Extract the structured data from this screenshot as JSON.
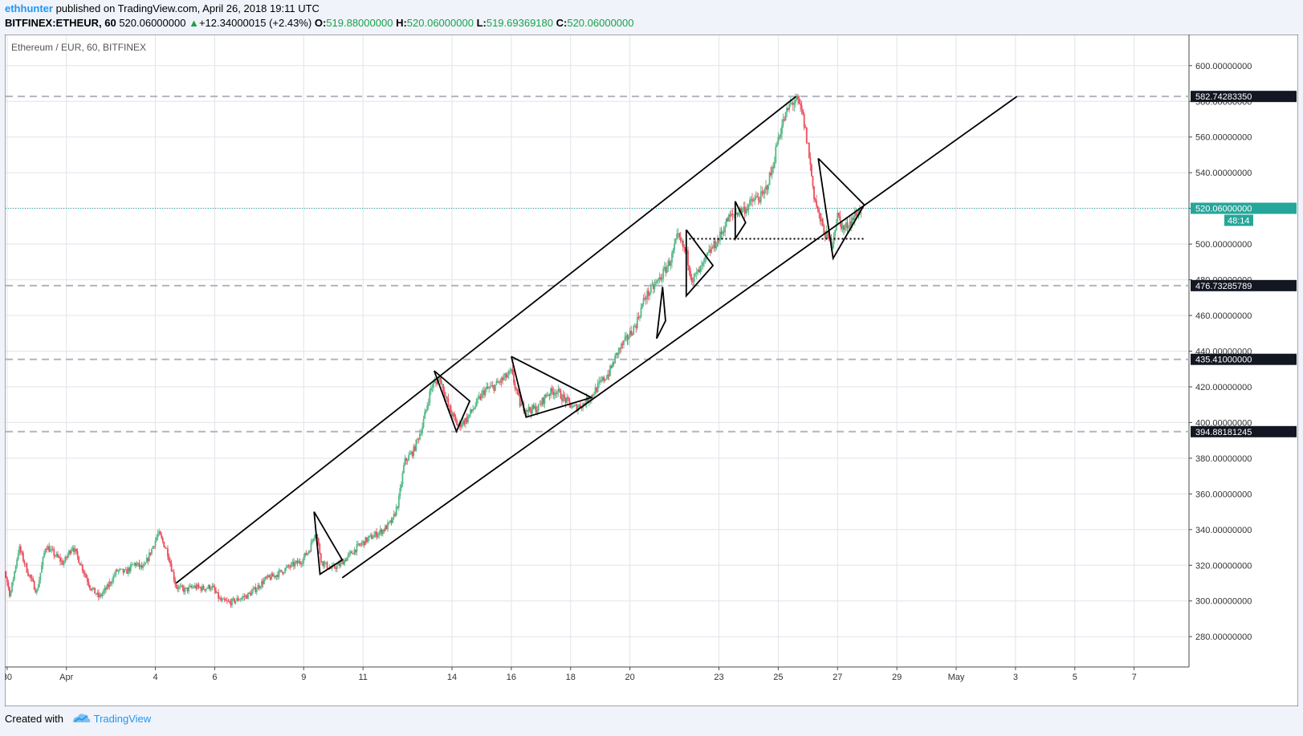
{
  "header": {
    "author": "ethhunter",
    "published_text": "published on TradingView.com, April 26, 2018 19:11 UTC",
    "symbol_interval": "BITFINEX:ETHEUR, 60",
    "last_price": "520.06000000",
    "change_arrow": "▲",
    "change": "+12.34000015 (+2.43%)",
    "o_label": "O:",
    "o_value": "519.88000000",
    "h_label": "H:",
    "h_value": "520.06000000",
    "l_label": "L:",
    "l_value": "519.69369180",
    "c_label": "C:",
    "c_value": "520.06000000"
  },
  "footer": {
    "created_with": "Created with",
    "brand": "TradingView"
  },
  "colors": {
    "up": "#53b987",
    "down": "#eb4d5c",
    "drawing": "#000000",
    "last_price": "#26a69a",
    "grid": "#e1e3ea",
    "level_line": "#b2b5be"
  },
  "chart_data": {
    "type": "candlestick",
    "title": "Ethereum / EUR, 60, BITFINEX",
    "price_axis": {
      "ticks": [
        "280.00000000",
        "300.00000000",
        "320.00000000",
        "340.00000000",
        "360.00000000",
        "380.00000000",
        "400.00000000",
        "420.00000000",
        "440.00000000",
        "460.00000000",
        "480.00000000",
        "500.00000000",
        "520.00000000",
        "540.00000000",
        "560.00000000",
        "580.00000000",
        "600.00000000"
      ],
      "range": [
        263,
        617
      ]
    },
    "time_axis": {
      "labels": [
        {
          "label": "30",
          "day": 30
        },
        {
          "label": "Apr",
          "day": 32
        },
        {
          "label": "4",
          "day": 35
        },
        {
          "label": "6",
          "day": 37
        },
        {
          "label": "9",
          "day": 40
        },
        {
          "label": "11",
          "day": 42
        },
        {
          "label": "14",
          "day": 45
        },
        {
          "label": "16",
          "day": 47
        },
        {
          "label": "18",
          "day": 49
        },
        {
          "label": "20",
          "day": 51
        },
        {
          "label": "23",
          "day": 54
        },
        {
          "label": "25",
          "day": 56
        },
        {
          "label": "27",
          "day": 58
        },
        {
          "label": "29",
          "day": 60
        },
        {
          "label": "May",
          "day": 62
        },
        {
          "label": "3",
          "day": 64
        },
        {
          "label": "5",
          "day": 66
        },
        {
          "label": "7",
          "day": 68
        }
      ],
      "day_range": [
        29.95,
        69.85
      ],
      "note_units": "days counted from March 1, 2018"
    },
    "last_price": {
      "value": 520.06,
      "label": "520.06000000",
      "countdown": "48:14"
    },
    "horizontal_levels": [
      {
        "value": 582.7428335,
        "label": "582.74283350"
      },
      {
        "value": 476.73285789,
        "label": "476.73285789"
      },
      {
        "value": 435.41,
        "label": "435.41000000"
      },
      {
        "value": 394.88181245,
        "label": "394.88181245"
      }
    ],
    "price_path": [
      [
        29.5,
        336
      ],
      [
        29.8,
        326
      ],
      [
        30.1,
        303
      ],
      [
        30.4,
        330
      ],
      [
        30.7,
        316
      ],
      [
        31.0,
        305
      ],
      [
        31.3,
        331
      ],
      [
        31.6,
        326
      ],
      [
        31.9,
        321
      ],
      [
        32.2,
        331
      ],
      [
        32.5,
        320
      ],
      [
        32.8,
        308
      ],
      [
        33.1,
        302
      ],
      [
        33.4,
        308
      ],
      [
        33.7,
        317
      ],
      [
        34.0,
        316
      ],
      [
        34.3,
        321
      ],
      [
        34.6,
        318
      ],
      [
        34.9,
        330
      ],
      [
        35.1,
        338
      ],
      [
        35.4,
        328
      ],
      [
        35.7,
        308
      ],
      [
        36.0,
        306
      ],
      [
        36.3,
        308
      ],
      [
        36.6,
        307
      ],
      [
        36.9,
        308
      ],
      [
        37.2,
        300
      ],
      [
        37.5,
        299
      ],
      [
        37.8,
        301
      ],
      [
        38.1,
        303
      ],
      [
        38.4,
        307
      ],
      [
        38.7,
        312
      ],
      [
        39.0,
        314
      ],
      [
        39.3,
        317
      ],
      [
        39.6,
        320
      ],
      [
        39.9,
        322
      ],
      [
        40.2,
        329
      ],
      [
        40.4,
        340
      ],
      [
        40.6,
        322
      ],
      [
        40.9,
        318
      ],
      [
        41.2,
        320
      ],
      [
        41.5,
        325
      ],
      [
        41.8,
        330
      ],
      [
        42.1,
        334
      ],
      [
        42.4,
        337
      ],
      [
        42.7,
        340
      ],
      [
        43.0,
        345
      ],
      [
        43.2,
        356
      ],
      [
        43.4,
        378
      ],
      [
        43.7,
        384
      ],
      [
        44.0,
        398
      ],
      [
        44.3,
        420
      ],
      [
        44.6,
        425
      ],
      [
        44.9,
        408
      ],
      [
        45.2,
        398
      ],
      [
        45.5,
        402
      ],
      [
        45.8,
        410
      ],
      [
        46.1,
        418
      ],
      [
        46.4,
        420
      ],
      [
        46.7,
        424
      ],
      [
        47.0,
        428
      ],
      [
        47.3,
        410
      ],
      [
        47.6,
        407
      ],
      [
        47.9,
        408
      ],
      [
        48.2,
        416
      ],
      [
        48.5,
        418
      ],
      [
        48.8,
        413
      ],
      [
        49.1,
        408
      ],
      [
        49.4,
        410
      ],
      [
        49.7,
        415
      ],
      [
        50.0,
        422
      ],
      [
        50.3,
        428
      ],
      [
        50.6,
        440
      ],
      [
        50.9,
        447
      ],
      [
        51.2,
        455
      ],
      [
        51.5,
        470
      ],
      [
        51.8,
        476
      ],
      [
        52.1,
        483
      ],
      [
        52.4,
        492
      ],
      [
        52.6,
        504
      ],
      [
        52.9,
        495
      ],
      [
        53.1,
        480
      ],
      [
        53.4,
        486
      ],
      [
        53.7,
        496
      ],
      [
        54.0,
        503
      ],
      [
        54.3,
        514
      ],
      [
        54.6,
        518
      ],
      [
        54.9,
        520
      ],
      [
        55.2,
        525
      ],
      [
        55.5,
        527
      ],
      [
        55.8,
        542
      ],
      [
        56.0,
        560
      ],
      [
        56.2,
        570
      ],
      [
        56.4,
        578
      ],
      [
        56.6,
        581
      ],
      [
        56.8,
        574
      ],
      [
        57.0,
        555
      ],
      [
        57.2,
        528
      ],
      [
        57.4,
        514
      ],
      [
        57.6,
        505
      ],
      [
        57.8,
        500
      ],
      [
        58.0,
        516
      ],
      [
        58.2,
        508
      ],
      [
        58.4,
        512
      ],
      [
        58.6,
        516
      ],
      [
        58.8,
        520.06
      ]
    ],
    "drawings": {
      "trendlines": [
        {
          "from": [
            35.7,
            310
          ],
          "to": [
            56.6,
            582.74
          ]
        },
        {
          "from": [
            41.3,
            313
          ],
          "to": [
            64.05,
            582.74
          ]
        }
      ],
      "polylines": [
        [
          [
            40.35,
            350
          ],
          [
            41.3,
            323
          ],
          [
            40.55,
            315
          ],
          [
            40.35,
            350
          ]
        ],
        [
          [
            44.4,
            429
          ],
          [
            45.6,
            412
          ],
          [
            45.15,
            395
          ],
          [
            44.4,
            429
          ]
        ],
        [
          [
            47.0,
            437
          ],
          [
            49.7,
            414
          ],
          [
            47.5,
            403
          ],
          [
            47.0,
            437
          ]
        ],
        [
          [
            51.9,
            447
          ],
          [
            52.1,
            476
          ],
          [
            52.2,
            457
          ],
          [
            51.9,
            447
          ]
        ],
        [
          [
            52.9,
            508
          ],
          [
            53.8,
            488
          ],
          [
            52.9,
            471
          ],
          [
            52.9,
            508
          ]
        ],
        [
          [
            54.55,
            524
          ],
          [
            54.9,
            512
          ],
          [
            54.55,
            503
          ],
          [
            54.55,
            524
          ]
        ],
        [
          [
            57.35,
            548
          ],
          [
            58.9,
            522
          ],
          [
            57.85,
            492
          ],
          [
            57.35,
            548
          ]
        ]
      ],
      "dotted_level": {
        "from": [
          53.0,
          503
        ],
        "to": [
          58.9,
          503
        ]
      }
    }
  }
}
